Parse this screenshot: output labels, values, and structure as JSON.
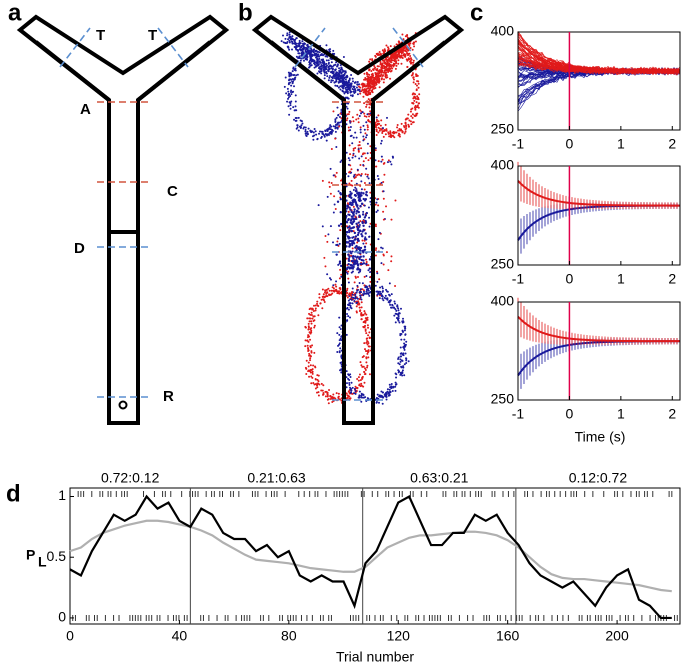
{
  "panel_labels": [
    "a",
    "b",
    "c",
    "d"
  ],
  "maze_labels": [
    "T",
    "T",
    "A",
    "C",
    "D",
    "R"
  ],
  "panel_c": {
    "xlim": [
      -1,
      2.15
    ],
    "xticks": [
      -1,
      0,
      1,
      2
    ],
    "ylim": [
      250,
      400
    ],
    "yticks": [
      250,
      400
    ],
    "xlabel": "Time (s)"
  },
  "chart_data": {
    "type": "line",
    "ylabel": "P",
    "ylabel_sub": "L",
    "xlabel": "Trial number",
    "xlim": [
      0,
      223
    ],
    "ylim": [
      -0.05,
      1.07
    ],
    "xticks": [
      0,
      40,
      80,
      120,
      160,
      200
    ],
    "yticks": [
      0,
      0.5,
      1
    ],
    "block_bounds": [
      44,
      107,
      163
    ],
    "block_labels": [
      "0.72:0.12",
      "0.21:0.63",
      "0.63:0.21",
      "0.12:0.72"
    ],
    "x": [
      0,
      4,
      8,
      12,
      16,
      20,
      24,
      28,
      32,
      36,
      40,
      44,
      48,
      52,
      56,
      60,
      64,
      68,
      72,
      76,
      80,
      84,
      88,
      92,
      96,
      100,
      104,
      108,
      112,
      116,
      120,
      124,
      128,
      132,
      136,
      140,
      144,
      148,
      152,
      156,
      160,
      164,
      168,
      172,
      176,
      180,
      184,
      188,
      192,
      196,
      200,
      204,
      208,
      212,
      216,
      220
    ],
    "series": [
      {
        "color": "#000000",
        "values": [
          0.4,
          0.35,
          0.55,
          0.7,
          0.85,
          0.8,
          0.85,
          1.0,
          0.9,
          0.95,
          0.8,
          0.75,
          0.9,
          0.85,
          0.7,
          0.65,
          0.65,
          0.55,
          0.6,
          0.5,
          0.55,
          0.35,
          0.3,
          0.35,
          0.3,
          0.3,
          0.1,
          0.45,
          0.55,
          0.75,
          0.95,
          1.0,
          0.8,
          0.6,
          0.6,
          0.7,
          0.7,
          0.85,
          0.8,
          0.85,
          0.7,
          0.6,
          0.45,
          0.35,
          0.3,
          0.25,
          0.3,
          0.2,
          0.1,
          0.25,
          0.35,
          0.4,
          0.15,
          0.1,
          0,
          0
        ]
      },
      {
        "color": "#b0b0b0",
        "values": [
          0.55,
          0.58,
          0.65,
          0.7,
          0.73,
          0.76,
          0.78,
          0.8,
          0.8,
          0.79,
          0.77,
          0.75,
          0.72,
          0.68,
          0.62,
          0.57,
          0.52,
          0.48,
          0.47,
          0.46,
          0.45,
          0.43,
          0.41,
          0.4,
          0.39,
          0.38,
          0.38,
          0.42,
          0.5,
          0.58,
          0.62,
          0.66,
          0.68,
          0.68,
          0.69,
          0.7,
          0.71,
          0.71,
          0.7,
          0.68,
          0.64,
          0.58,
          0.5,
          0.42,
          0.36,
          0.33,
          0.32,
          0.32,
          0.31,
          0.3,
          0.29,
          0.28,
          0.27,
          0.25,
          0.23,
          0.22
        ]
      }
    ]
  }
}
